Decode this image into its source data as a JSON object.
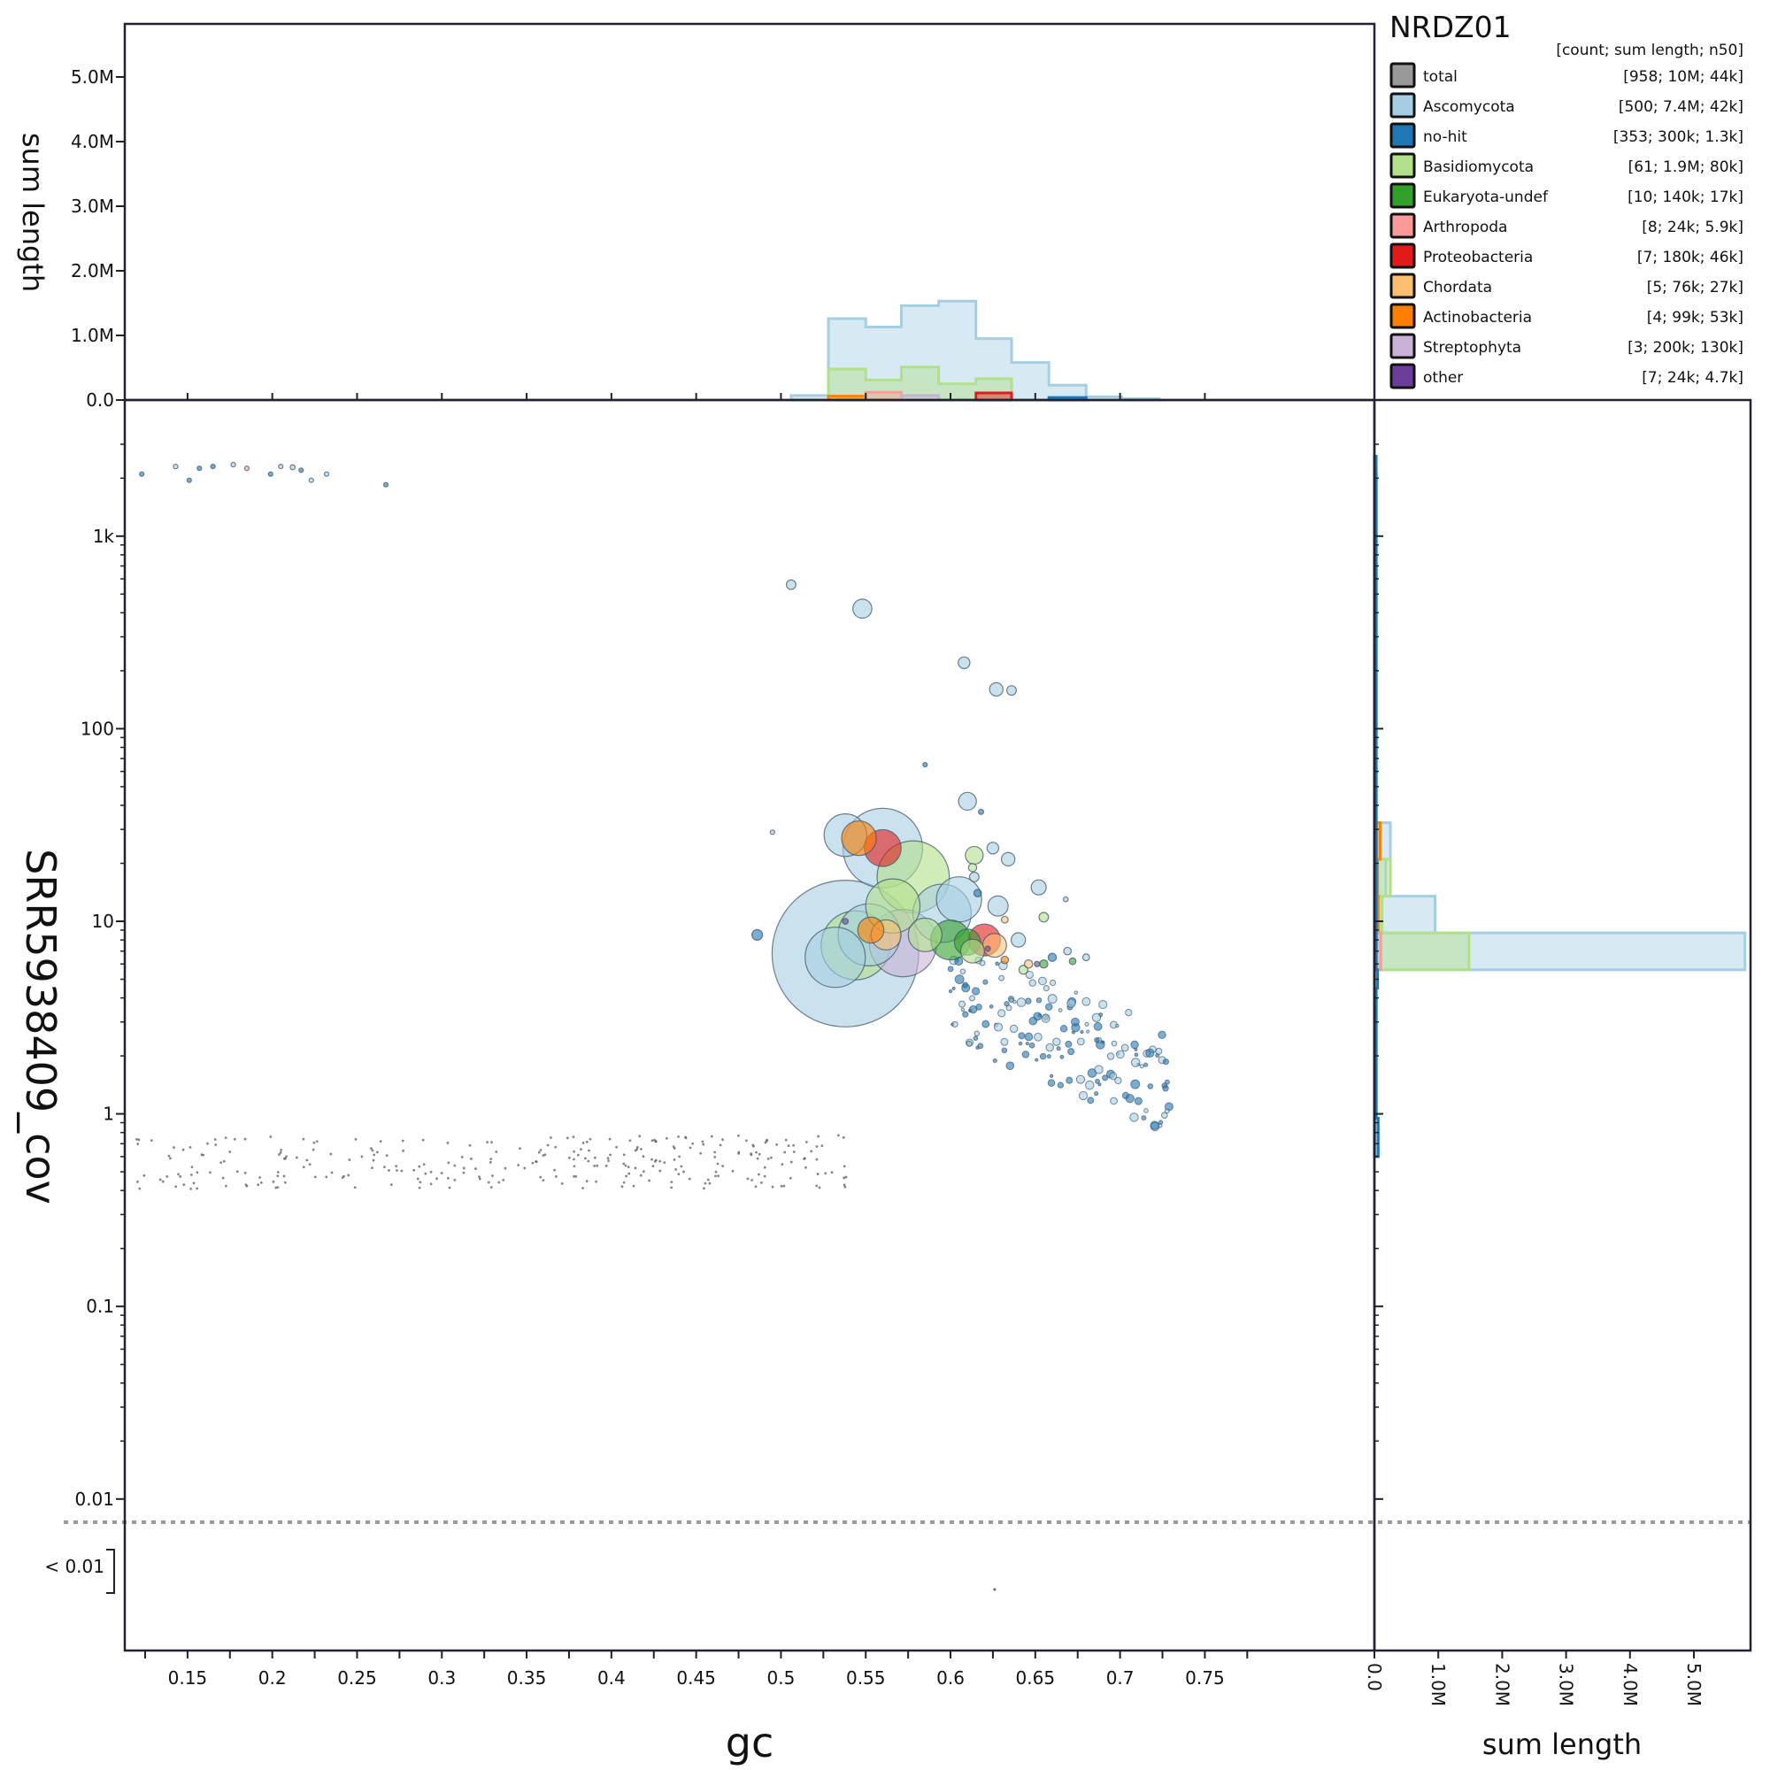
{
  "chart_data": {
    "type": "scatter",
    "title": "NRDZ01",
    "xlabel": "gc",
    "ylabel": "SRR5938409_cov",
    "top_hist_label": "sum length",
    "right_hist_label": "sum length",
    "xlim": [
      0.113,
      0.85
    ],
    "ylog": true,
    "ylim": [
      0.01,
      3000
    ],
    "x_ticks": [
      "0.15",
      "0.2",
      "0.25",
      "0.3",
      "0.35",
      "0.4",
      "0.45",
      "0.5",
      "0.55",
      "0.6",
      "0.65",
      "0.7",
      "0.75"
    ],
    "x_tick_values": [
      0.15,
      0.2,
      0.25,
      0.3,
      0.35,
      0.4,
      0.45,
      0.5,
      0.55,
      0.6,
      0.65,
      0.7,
      0.75
    ],
    "y_ticks": [
      {
        "label": "1k",
        "value": 1000
      },
      {
        "label": "100",
        "value": 100
      },
      {
        "label": "10",
        "value": 10
      },
      {
        "label": "1",
        "value": 1
      },
      {
        "label": "0.1",
        "value": 0.1
      },
      {
        "label": "0.01",
        "value": 0.01
      }
    ],
    "below_threshold_label": "< 0.01",
    "hist_ticks": [
      "0.0",
      "1.0M",
      "2.0M",
      "3.0M",
      "4.0M",
      "5.0M"
    ],
    "hist_tick_values": [
      0,
      1,
      2,
      3,
      4,
      5
    ],
    "hist_max_millions": 5.8,
    "legend_header": "[count; sum length; n50]",
    "legend_position": "top-right",
    "legend": [
      {
        "name": "total",
        "stats": "[958; 10M; 44k]",
        "color": "#999999"
      },
      {
        "name": "Ascomycota",
        "stats": "[500; 7.4M; 42k]",
        "color": "#a6cee3"
      },
      {
        "name": "no-hit",
        "stats": "[353; 300k; 1.3k]",
        "color": "#1f78b4"
      },
      {
        "name": "Basidiomycota",
        "stats": "[61; 1.9M; 80k]",
        "color": "#b2df8a"
      },
      {
        "name": "Eukaryota-undef",
        "stats": "[10; 140k; 17k]",
        "color": "#33a02c"
      },
      {
        "name": "Arthropoda",
        "stats": "[8; 24k; 5.9k]",
        "color": "#fb9a99"
      },
      {
        "name": "Proteobacteria",
        "stats": "[7; 180k; 46k]",
        "color": "#e31a1c"
      },
      {
        "name": "Chordata",
        "stats": "[5; 76k; 27k]",
        "color": "#fdbf6f"
      },
      {
        "name": "Actinobacteria",
        "stats": "[4; 99k; 53k]",
        "color": "#ff7f00"
      },
      {
        "name": "Streptophyta",
        "stats": "[3; 200k; 130k]",
        "color": "#cab2d6"
      },
      {
        "name": "other",
        "stats": "[7; 24k; 4.7k]",
        "color": "#6a3d9a"
      }
    ],
    "top_histograms": [
      {
        "name": "Ascomycota",
        "bin_edges": [
          0.506,
          0.528,
          0.55,
          0.571,
          0.593,
          0.615,
          0.636,
          0.658,
          0.68,
          0.701,
          0.723
        ],
        "values_millions": [
          0.07,
          1.26,
          1.13,
          1.46,
          1.53,
          0.95,
          0.58,
          0.23,
          0.05,
          0.02
        ]
      },
      {
        "name": "Basidiomycota",
        "bin_edges": [
          0.528,
          0.55,
          0.571,
          0.593,
          0.615,
          0.636
        ],
        "values_millions": [
          0.48,
          0.31,
          0.51,
          0.25,
          0.33
        ]
      },
      {
        "name": "Proteobacteria",
        "bin_edges": [
          0.615,
          0.636
        ],
        "values_millions": [
          0.11
        ]
      },
      {
        "name": "Actinobacteria",
        "bin_edges": [
          0.528,
          0.55
        ],
        "values_millions": [
          0.06
        ]
      },
      {
        "name": "Arthropoda",
        "bin_edges": [
          0.55,
          0.571
        ],
        "values_millions": [
          0.12
        ]
      },
      {
        "name": "Streptophyta",
        "bin_edges": [
          0.571,
          0.593
        ],
        "values_millions": [
          0.07
        ]
      },
      {
        "name": "no-hit",
        "bin_edges": [
          0.658,
          0.68
        ],
        "values_millions": [
          0.04
        ]
      }
    ],
    "right_histograms": [
      {
        "name": "Ascomycota",
        "bin_edges_cov": [
          5.6,
          8.7,
          13.5,
          21,
          32.5
        ],
        "values_millions": [
          5.8,
          0.95,
          0.18,
          0.25
        ]
      },
      {
        "name": "Basidiomycota",
        "bin_edges_cov": [
          5.6,
          8.7,
          13.5,
          21
        ],
        "values_millions": [
          1.48,
          0.12,
          0.25
        ]
      },
      {
        "name": "Actinobacteria",
        "bin_edges_cov": [
          8.7,
          13.5,
          21,
          32.5
        ],
        "values_millions": [
          0.06,
          0.05,
          0.09
        ]
      },
      {
        "name": "Arthropoda",
        "bin_edges_cov": [
          5.6,
          8.7
        ],
        "values_millions": [
          0.1
        ]
      },
      {
        "name": "no-hit",
        "bin_edges_cov": [
          0.6,
          0.95,
          4.5,
          5.6,
          2100,
          2600
        ],
        "values_millions": [
          0.06,
          0.03,
          0.05,
          0.03,
          0.02
        ]
      }
    ],
    "threshold_cov": 0.0075,
    "points": [
      {
        "gc": 0.538,
        "cov": 6.8,
        "len": 950000,
        "cat": "Ascomycota"
      },
      {
        "gc": 0.56,
        "cov": 24,
        "len": 280000,
        "cat": "Ascomycota"
      },
      {
        "gc": 0.578,
        "cov": 17,
        "len": 230000,
        "cat": "Basidiomycota"
      },
      {
        "gc": 0.544,
        "cov": 7.5,
        "len": 210000,
        "cat": "Basidiomycota"
      },
      {
        "gc": 0.572,
        "cov": 7.7,
        "len": 200000,
        "cat": "Streptophyta"
      },
      {
        "gc": 0.552,
        "cov": 8.5,
        "len": 170000,
        "cat": "Ascomycota"
      },
      {
        "gc": 0.532,
        "cov": 6.5,
        "len": 160000,
        "cat": "Ascomycota"
      },
      {
        "gc": 0.595,
        "cov": 11,
        "len": 150000,
        "cat": "Ascomycota"
      },
      {
        "gc": 0.566,
        "cov": 12,
        "len": 130000,
        "cat": "Basidiomycota"
      },
      {
        "gc": 0.538,
        "cov": 28,
        "len": 80000,
        "cat": "Ascomycota"
      },
      {
        "gc": 0.56,
        "cov": 24,
        "len": 60000,
        "cat": "Proteobacteria"
      },
      {
        "gc": 0.546,
        "cov": 27,
        "len": 53000,
        "cat": "Actinobacteria"
      },
      {
        "gc": 0.605,
        "cov": 13,
        "len": 90000,
        "cat": "Ascomycota"
      },
      {
        "gc": 0.6,
        "cov": 8,
        "len": 70000,
        "cat": "Eukaryota-undef"
      },
      {
        "gc": 0.585,
        "cov": 8.5,
        "len": 50000,
        "cat": "Basidiomycota"
      },
      {
        "gc": 0.562,
        "cov": 8.5,
        "len": 40000,
        "cat": "Chordata"
      },
      {
        "gc": 0.62,
        "cov": 8,
        "len": 45000,
        "cat": "Proteobacteria"
      },
      {
        "gc": 0.626,
        "cov": 7.5,
        "len": 25000,
        "cat": "Chordata"
      },
      {
        "gc": 0.553,
        "cov": 9,
        "len": 30000,
        "cat": "Actinobacteria"
      },
      {
        "gc": 0.61,
        "cov": 7.8,
        "len": 30000,
        "cat": "Eukaryota-undef"
      },
      {
        "gc": 0.613,
        "cov": 7,
        "len": 25000,
        "cat": "Basidiomycota"
      },
      {
        "gc": 0.548,
        "cov": 420,
        "len": 16000,
        "cat": "Ascomycota"
      },
      {
        "gc": 0.61,
        "cov": 42,
        "len": 14000,
        "cat": "Ascomycota"
      },
      {
        "gc": 0.506,
        "cov": 560,
        "len": 4000,
        "cat": "Ascomycota"
      },
      {
        "gc": 0.608,
        "cov": 220,
        "len": 6000,
        "cat": "Ascomycota"
      },
      {
        "gc": 0.627,
        "cov": 160,
        "len": 8000,
        "cat": "Ascomycota"
      },
      {
        "gc": 0.636,
        "cov": 158,
        "len": 4000,
        "cat": "Ascomycota"
      },
      {
        "gc": 0.614,
        "cov": 22,
        "len": 14000,
        "cat": "Basidiomycota"
      },
      {
        "gc": 0.625,
        "cov": 24,
        "len": 6000,
        "cat": "Ascomycota"
      },
      {
        "gc": 0.634,
        "cov": 21,
        "len": 8000,
        "cat": "Ascomycota"
      },
      {
        "gc": 0.652,
        "cov": 15,
        "len": 10000,
        "cat": "Ascomycota"
      },
      {
        "gc": 0.628,
        "cov": 12,
        "len": 18000,
        "cat": "Ascomycota"
      },
      {
        "gc": 0.64,
        "cov": 8,
        "len": 9000,
        "cat": "Ascomycota"
      },
      {
        "gc": 0.655,
        "cov": 10.5,
        "len": 4000,
        "cat": "Basidiomycota"
      },
      {
        "gc": 0.486,
        "cov": 8.5,
        "len": 5000,
        "cat": "no-hit"
      },
      {
        "gc": 0.614,
        "cov": 17,
        "len": 4000,
        "cat": "Ascomycota"
      },
      {
        "gc": 0.613,
        "cov": 19,
        "len": 3000,
        "cat": "Basidiomycota"
      },
      {
        "gc": 0.616,
        "cov": 14,
        "len": 2500,
        "cat": "no-hit"
      },
      {
        "gc": 0.622,
        "cov": 7.2,
        "len": 1200,
        "cat": "other"
      },
      {
        "gc": 0.651,
        "cov": 6,
        "len": 1300,
        "cat": "other"
      },
      {
        "gc": 0.632,
        "cov": 6.3,
        "len": 2500,
        "cat": "Actinobacteria"
      },
      {
        "gc": 0.646,
        "cov": 6,
        "len": 3000,
        "cat": "Chordata"
      },
      {
        "gc": 0.538,
        "cov": 10,
        "len": 1500,
        "cat": "other"
      },
      {
        "gc": 0.632,
        "cov": 10.2,
        "len": 2000,
        "cat": "Chordata"
      },
      {
        "gc": 0.643,
        "cov": 5.6,
        "len": 3500,
        "cat": "Basidiomycota"
      },
      {
        "gc": 0.655,
        "cov": 6,
        "len": 3000,
        "cat": "Eukaryota-undef"
      },
      {
        "gc": 0.669,
        "cov": 7,
        "len": 2500,
        "cat": "Ascomycota"
      },
      {
        "gc": 0.672,
        "cov": 6.2,
        "len": 2000,
        "cat": "Eukaryota-undef"
      },
      {
        "gc": 0.68,
        "cov": 6.5,
        "len": 2000,
        "cat": "Ascomycota"
      },
      {
        "gc": 0.66,
        "cov": 6.5,
        "len": 3000,
        "cat": "no-hit"
      },
      {
        "gc": 0.668,
        "cov": 13,
        "len": 1000,
        "cat": "Ascomycota"
      },
      {
        "gc": 0.495,
        "cov": 29,
        "len": 700,
        "cat": "Ascomycota"
      },
      {
        "gc": 0.618,
        "cov": 37,
        "len": 1200,
        "cat": "no-hit"
      },
      {
        "gc": 0.585,
        "cov": 65,
        "len": 300,
        "cat": "no-hit"
      },
      {
        "gc": 0.143,
        "cov": 2300,
        "len": 900,
        "cat": "Ascomycota"
      },
      {
        "gc": 0.123,
        "cov": 2100,
        "len": 400,
        "cat": "no-hit"
      },
      {
        "gc": 0.177,
        "cov": 2350,
        "len": 900,
        "cat": "Ascomycota"
      },
      {
        "gc": 0.185,
        "cov": 2250,
        "len": 900,
        "cat": "Arthropoda"
      },
      {
        "gc": 0.205,
        "cov": 2300,
        "len": 600,
        "cat": "Ascomycota"
      },
      {
        "gc": 0.212,
        "cov": 2280,
        "len": 1100,
        "cat": "Ascomycota"
      },
      {
        "gc": 0.217,
        "cov": 2200,
        "len": 700,
        "cat": "no-hit"
      },
      {
        "gc": 0.223,
        "cov": 1950,
        "len": 600,
        "cat": "Ascomycota"
      },
      {
        "gc": 0.199,
        "cov": 2100,
        "len": 400,
        "cat": "no-hit"
      },
      {
        "gc": 0.157,
        "cov": 2250,
        "len": 300,
        "cat": "no-hit"
      },
      {
        "gc": 0.165,
        "cov": 2300,
        "len": 300,
        "cat": "no-hit"
      },
      {
        "gc": 0.232,
        "cov": 2100,
        "len": 300,
        "cat": "Ascomycota"
      },
      {
        "gc": 0.151,
        "cov": 1950,
        "len": 300,
        "cat": "no-hit"
      },
      {
        "gc": 0.267,
        "cov": 1850,
        "len": 250,
        "cat": "no-hit"
      }
    ]
  }
}
